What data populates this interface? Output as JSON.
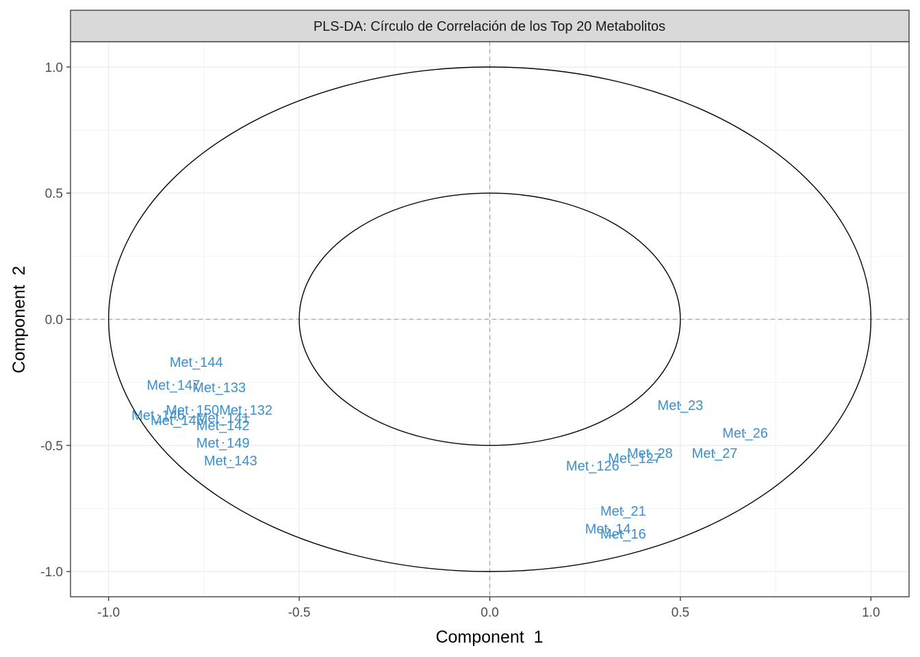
{
  "chart_data": {
    "type": "scatter",
    "title": "PLS-DA: Círculo de Correlación de los Top 20 Metabolitos",
    "xlabel": "Component  1",
    "ylabel": "Component  2",
    "xlim": [
      -1.1,
      1.1
    ],
    "ylim": [
      -1.1,
      1.1
    ],
    "x_ticks": [
      "-1.0",
      "-0.5",
      "0.0",
      "0.5",
      "1.0"
    ],
    "y_ticks": [
      "1.0",
      "0.5",
      "0.0",
      "-0.5",
      "-1.0"
    ],
    "x_tick_values": [
      -1.0,
      -0.5,
      0.0,
      0.5,
      1.0
    ],
    "y_tick_values": [
      1.0,
      0.5,
      0.0,
      -0.5,
      -1.0
    ],
    "grid": true,
    "reference_lines": {
      "x": 0,
      "y": 0,
      "style": "dashed"
    },
    "circles": [
      {
        "radius": 1.0
      },
      {
        "radius": 0.5
      }
    ],
    "label_color": "#3a8fcc",
    "points": [
      {
        "label": "Met_144",
        "x": -0.77,
        "y": -0.17
      },
      {
        "label": "Met_147",
        "x": -0.83,
        "y": -0.26
      },
      {
        "label": "Met_133",
        "x": -0.71,
        "y": -0.27
      },
      {
        "label": "Met_150",
        "x": -0.78,
        "y": -0.36
      },
      {
        "label": "Met_132",
        "x": -0.64,
        "y": -0.36
      },
      {
        "label": "Met_146",
        "x": -0.87,
        "y": -0.38
      },
      {
        "label": "Met_145",
        "x": -0.82,
        "y": -0.4
      },
      {
        "label": "Met_141",
        "x": -0.7,
        "y": -0.39
      },
      {
        "label": "Met_142",
        "x": -0.7,
        "y": -0.42
      },
      {
        "label": "Met_149",
        "x": -0.7,
        "y": -0.49
      },
      {
        "label": "Met_143",
        "x": -0.68,
        "y": -0.56
      },
      {
        "label": "Met_23",
        "x": 0.5,
        "y": -0.34
      },
      {
        "label": "Met_26",
        "x": 0.67,
        "y": -0.45
      },
      {
        "label": "Met_27",
        "x": 0.59,
        "y": -0.53
      },
      {
        "label": "Met_28",
        "x": 0.42,
        "y": -0.53
      },
      {
        "label": "Met_127",
        "x": 0.38,
        "y": -0.55
      },
      {
        "label": "Met_126",
        "x": 0.27,
        "y": -0.58
      },
      {
        "label": "Met_21",
        "x": 0.35,
        "y": -0.76
      },
      {
        "label": "Met_14",
        "x": 0.31,
        "y": -0.83
      },
      {
        "label": "Met_16",
        "x": 0.35,
        "y": -0.85
      }
    ]
  }
}
